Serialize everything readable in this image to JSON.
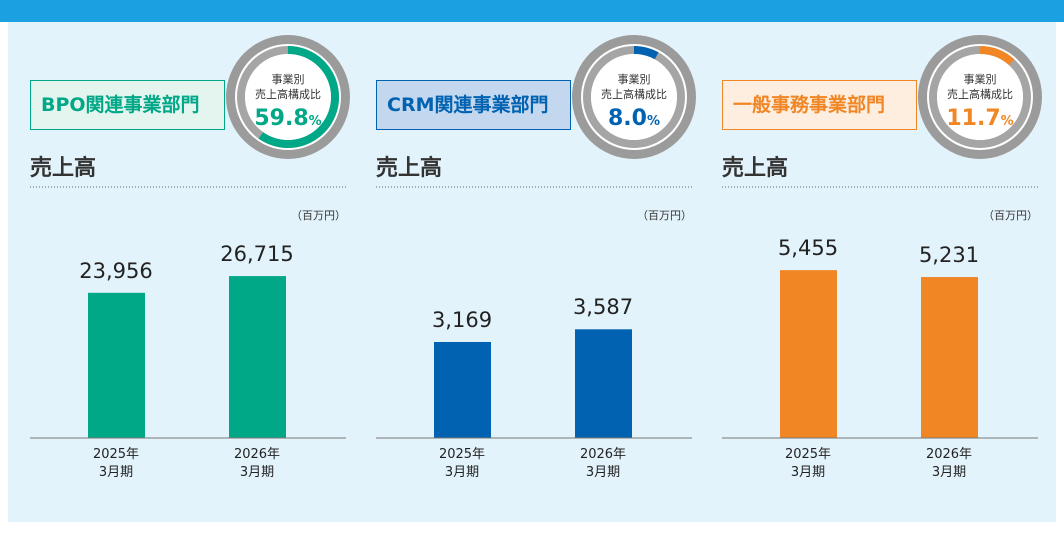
{
  "chart_data": [
    {
      "type": "bar",
      "title": "BPO関連事業部門",
      "share_caption": [
        "事業別",
        "売上高構成比"
      ],
      "share": 59.8,
      "share_label": "59.8",
      "share_unit": "%",
      "subtitle": "売上高",
      "unit_label": "（百万円）",
      "categories": [
        "2025年\n3月期",
        "2026年\n3月期"
      ],
      "values": [
        23956,
        26715
      ],
      "value_labels": [
        "23,956",
        "26,715"
      ],
      "color": "#00a887",
      "title_bg": "#e4f5ef",
      "ylim": [
        0,
        33000
      ]
    },
    {
      "type": "bar",
      "title": "CRM関連事業部門",
      "share_caption": [
        "事業別",
        "売上高構成比"
      ],
      "share": 8.0,
      "share_label": "8.0",
      "share_unit": "%",
      "subtitle": "売上高",
      "unit_label": "（百万円）",
      "categories": [
        "2025年\n3月期",
        "2026年\n3月期"
      ],
      "values": [
        3169,
        3587
      ],
      "value_labels": [
        "3,169",
        "3,587"
      ],
      "color": "#0062b1",
      "title_bg": "#c3d7ee",
      "ylim": [
        0,
        6600
      ]
    },
    {
      "type": "bar",
      "title": "一般事務事業部門",
      "share_caption": [
        "事業別",
        "売上高構成比"
      ],
      "share": 11.7,
      "share_label": "11.7",
      "share_unit": "%",
      "subtitle": "売上高",
      "unit_label": "（百万円）",
      "categories": [
        "2025年\n3月期",
        "2026年\n3月期"
      ],
      "values": [
        5455,
        5231
      ],
      "value_labels": [
        "5,455",
        "5,231"
      ],
      "color": "#f18625",
      "title_bg": "#fdeedf",
      "ylim": [
        0,
        6500
      ]
    }
  ]
}
